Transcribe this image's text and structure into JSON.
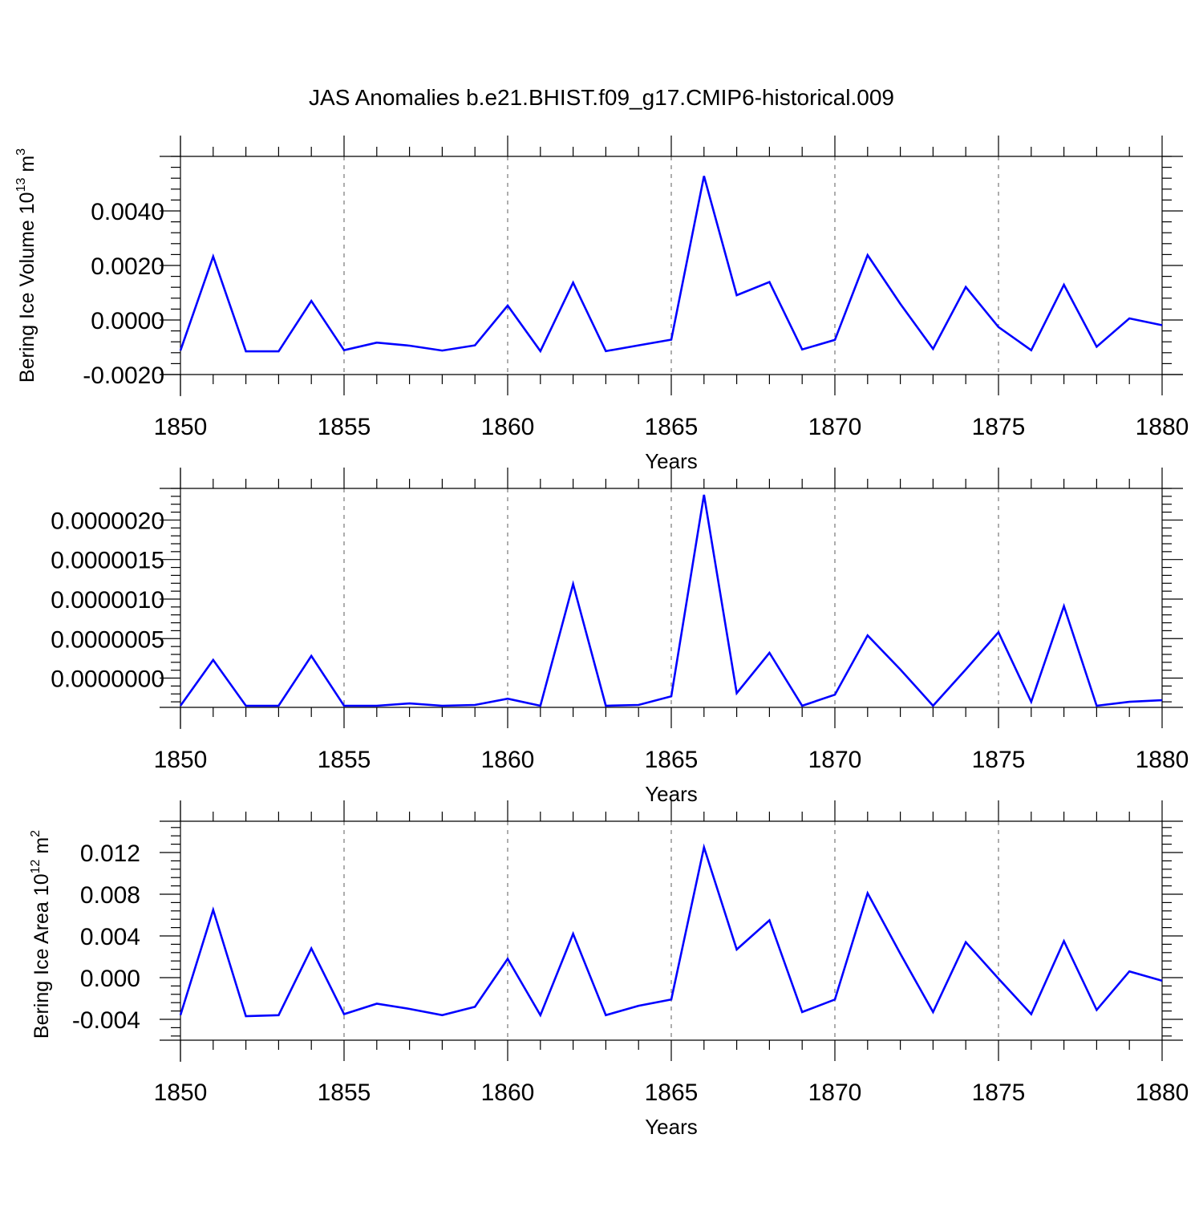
{
  "title": "JAS Anomalies b.e21.BHIST.f09_g17.CMIP6-historical.009",
  "colors": {
    "series": "#0000ff",
    "axis": "#000000",
    "grid": "#777777"
  },
  "chart_data": [
    {
      "type": "line",
      "name": "bering-ice-volume",
      "title": "JAS Anomalies b.e21.BHIST.f09_g17.CMIP6-historical.009",
      "xlabel": "Years",
      "ylabel": {
        "prefix": "Bering Ice Volume 10",
        "exp1": "13",
        "mid": " m",
        "exp2": "3"
      },
      "xlim": [
        1850,
        1880
      ],
      "ylim": [
        -0.002,
        0.006
      ],
      "xticks": [
        1850,
        1855,
        1860,
        1865,
        1870,
        1875,
        1880
      ],
      "xtick_labels": [
        "1850",
        "1855",
        "1860",
        "1865",
        "1870",
        "1875",
        "1880"
      ],
      "yticks": [
        -0.002,
        0.0,
        0.002,
        0.004
      ],
      "ytick_labels": [
        "-0.0020",
        "0.0000",
        "0.0020",
        "0.0040"
      ],
      "x": [
        1850,
        1851,
        1852,
        1853,
        1854,
        1855,
        1856,
        1857,
        1858,
        1859,
        1860,
        1861,
        1862,
        1863,
        1864,
        1865,
        1866,
        1867,
        1868,
        1869,
        1870,
        1871,
        1872,
        1873,
        1874,
        1875,
        1876,
        1877,
        1878,
        1879,
        1880
      ],
      "values": [
        -0.00112,
        0.00233,
        -0.00115,
        -0.00115,
        0.0007,
        -0.00111,
        -0.00083,
        -0.00094,
        -0.00112,
        -0.00093,
        0.00053,
        -0.00114,
        0.00137,
        -0.00114,
        -0.00093,
        -0.00072,
        0.00528,
        0.00091,
        0.00139,
        -0.00108,
        -0.00073,
        0.00238,
        0.00059,
        -0.00106,
        0.00121,
        -0.00026,
        -0.00111,
        0.00129,
        -0.00098,
        6e-05,
        -0.00019
      ]
    },
    {
      "type": "line",
      "name": "bering-ice-middle",
      "title": "",
      "xlabel": "Years",
      "ylabel": "",
      "xlim": [
        1850,
        1880
      ],
      "ylim": [
        -3.7e-07,
        2.4e-06
      ],
      "xticks": [
        1850,
        1855,
        1860,
        1865,
        1870,
        1875,
        1880
      ],
      "xtick_labels": [
        "1850",
        "1855",
        "1860",
        "1865",
        "1870",
        "1875",
        "1880"
      ],
      "yticks": [
        0.0,
        5e-07,
        1e-06,
        1.5e-06,
        2e-06
      ],
      "ytick_labels": [
        "0.0000000",
        "0.0000005",
        "0.0000010",
        "0.0000015",
        "0.0000020"
      ],
      "x": [
        1850,
        1851,
        1852,
        1853,
        1854,
        1855,
        1856,
        1857,
        1858,
        1859,
        1860,
        1861,
        1862,
        1863,
        1864,
        1865,
        1866,
        1867,
        1868,
        1869,
        1870,
        1871,
        1872,
        1873,
        1874,
        1875,
        1876,
        1877,
        1878,
        1879,
        1880
      ],
      "values": [
        -3.5e-07,
        2.3e-07,
        -3.5e-07,
        -3.5e-07,
        2.8e-07,
        -3.5e-07,
        -3.5e-07,
        -3.2e-07,
        -3.5e-07,
        -3.4e-07,
        -2.6e-07,
        -3.5e-07,
        1.19e-06,
        -3.5e-07,
        -3.4e-07,
        -2.3e-07,
        2.32e-06,
        -1.9e-07,
        3.2e-07,
        -3.5e-07,
        -2.1e-07,
        5.4e-07,
        1.1e-07,
        -3.5e-07,
        1.1e-07,
        5.8e-07,
        -3e-07,
        9.1e-07,
        -3.5e-07,
        -3e-07,
        -2.8e-07
      ]
    },
    {
      "type": "line",
      "name": "bering-ice-area",
      "title": "",
      "xlabel": "Years",
      "ylabel": {
        "prefix": "Bering Ice Area 10",
        "exp1": "12",
        "mid": " m",
        "exp2": "2"
      },
      "xlim": [
        1850,
        1880
      ],
      "ylim": [
        -0.006,
        0.015
      ],
      "xticks": [
        1850,
        1855,
        1860,
        1865,
        1870,
        1875,
        1880
      ],
      "xtick_labels": [
        "1850",
        "1855",
        "1860",
        "1865",
        "1870",
        "1875",
        "1880"
      ],
      "yticks": [
        -0.004,
        0.0,
        0.004,
        0.008,
        0.012
      ],
      "ytick_labels": [
        "-0.004",
        "0.000",
        "0.004",
        "0.008",
        "0.012"
      ],
      "x": [
        1850,
        1851,
        1852,
        1853,
        1854,
        1855,
        1856,
        1857,
        1858,
        1859,
        1860,
        1861,
        1862,
        1863,
        1864,
        1865,
        1866,
        1867,
        1868,
        1869,
        1870,
        1871,
        1872,
        1873,
        1874,
        1875,
        1876,
        1877,
        1878,
        1879,
        1880
      ],
      "values": [
        -0.0036,
        0.0065,
        -0.0037,
        -0.0036,
        0.0028,
        -0.0035,
        -0.0025,
        -0.003,
        -0.0036,
        -0.0028,
        0.0018,
        -0.0036,
        0.0042,
        -0.0036,
        -0.0027,
        -0.0021,
        0.0125,
        0.0027,
        0.0055,
        -0.0033,
        -0.0021,
        0.0081,
        0.0023,
        -0.0033,
        0.0034,
        -0.0001,
        -0.0035,
        0.0035,
        -0.0031,
        0.0006,
        -0.0003
      ]
    }
  ]
}
